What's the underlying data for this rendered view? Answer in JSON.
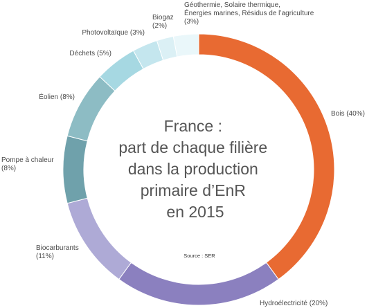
{
  "chart_data": {
    "type": "pie",
    "style": "donut",
    "title": [
      "France :",
      "part de chaque filière",
      "dans la production",
      "primaire d’EnR",
      "en 2015"
    ],
    "source": "Source : SER",
    "slices": [
      {
        "name": "Bois",
        "value": 40,
        "label": [
          "Bois (40%)"
        ],
        "color": "#e86a32"
      },
      {
        "name": "Hydroélectricité",
        "value": 20,
        "label": [
          "Hydroélectricité (20%)"
        ],
        "color": "#8b80bf"
      },
      {
        "name": "Biocarburants",
        "value": 11,
        "label": [
          "Biocarburants",
          "(11%)"
        ],
        "color": "#aeaad6"
      },
      {
        "name": "Pompe à chaleur",
        "value": 8,
        "label": [
          "Pompe à chaleur",
          "(8%)"
        ],
        "color": "#6fa1ab"
      },
      {
        "name": "Éolien",
        "value": 8,
        "label": [
          "Éolien (8%)"
        ],
        "color": "#8dbcc4"
      },
      {
        "name": "Déchets",
        "value": 5,
        "label": [
          "Déchets (5%)"
        ],
        "color": "#a6d8e2"
      },
      {
        "name": "Photovoltaïque",
        "value": 3,
        "label": [
          "Photovoltaïque (3%)"
        ],
        "color": "#c4e6ee"
      },
      {
        "name": "Biogaz",
        "value": 2,
        "label": [
          "Biogaz",
          "(2%)"
        ],
        "color": "#dbf0f5"
      },
      {
        "name": "Géothermie, Solaire thermique, Énergies marines, Résidus de l’agriculture",
        "value": 3,
        "label": [
          "Géothermie, Solaire thermique,",
          "Énergies marines, Résidus de l’agriculture",
          "(3%)"
        ],
        "color": "#eaf7fa"
      }
    ]
  }
}
